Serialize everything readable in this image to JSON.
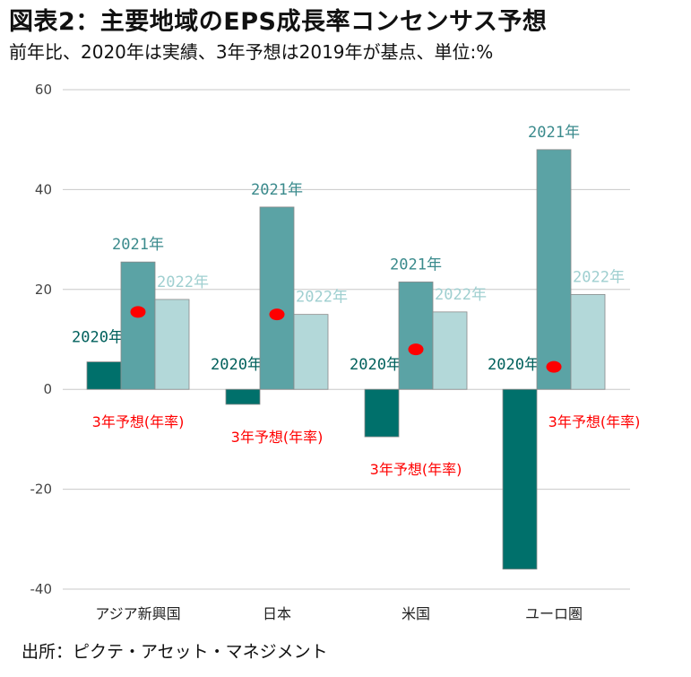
{
  "title": "図表2：主要地域のEPS成長率コンセンサス予想",
  "subtitle": "前年比、2020年は実績、3年予想は2019年が基点、単位:%",
  "source": "出所：ピクテ・アセット・マネジメント",
  "colors": {
    "y2020": "#00706b",
    "y2021": "#5ba3a5",
    "y2022": "#b3d8d9",
    "forecast_dot": "#ff0000",
    "label_2020": "#00605c",
    "label_2021": "#3a8a8c",
    "label_2022": "#9fcfd0",
    "forecast_text": "#ff0000",
    "grid": "#c8c8c8"
  },
  "chart_data": {
    "type": "bar",
    "categories": [
      "アジア新興国",
      "日本",
      "米国",
      "ユーロ圏"
    ],
    "series": [
      {
        "name": "2020年",
        "values": [
          5.5,
          -3.0,
          -9.5,
          -36.0
        ]
      },
      {
        "name": "2021年",
        "values": [
          25.5,
          36.5,
          21.5,
          48.0
        ]
      },
      {
        "name": "2022年",
        "values": [
          18.0,
          15.0,
          15.5,
          19.0
        ]
      }
    ],
    "forecast": {
      "name": "3年予想(年率)",
      "values": [
        15.5,
        15.0,
        8.0,
        4.5
      ]
    },
    "ylim": [
      -40,
      60
    ],
    "yticks": [
      -40,
      -20,
      0,
      20,
      40,
      60
    ],
    "grid": true,
    "xlabel": "",
    "ylabel": ""
  }
}
